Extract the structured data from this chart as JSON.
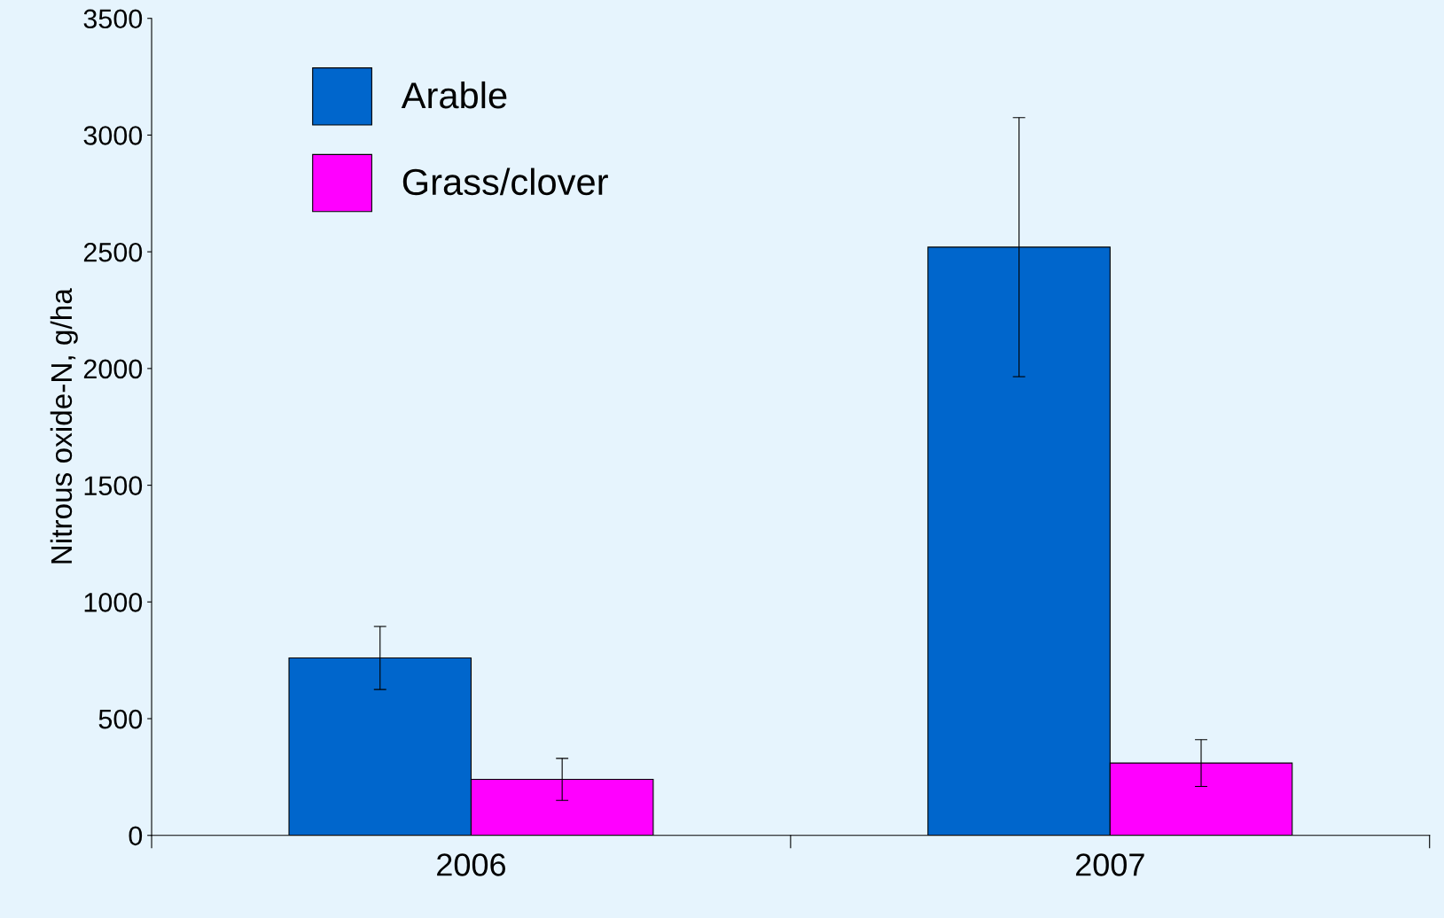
{
  "chart_data": {
    "type": "bar",
    "ylabel": "Nitrous oxide-N, g/ha",
    "categories": [
      "2006",
      "2007"
    ],
    "series": [
      {
        "name": "Arable",
        "color": "#0066cc",
        "values": [
          760,
          2520
        ],
        "errors": [
          135,
          555
        ]
      },
      {
        "name": "Grass/clover",
        "color": "#ff00ff",
        "values": [
          240,
          310
        ],
        "errors": [
          90,
          100
        ]
      }
    ],
    "ylim": [
      0,
      3500
    ],
    "yticks": [
      0,
      500,
      1000,
      1500,
      2000,
      2500,
      3000,
      3500
    ],
    "grid": false,
    "legend": "top left"
  }
}
